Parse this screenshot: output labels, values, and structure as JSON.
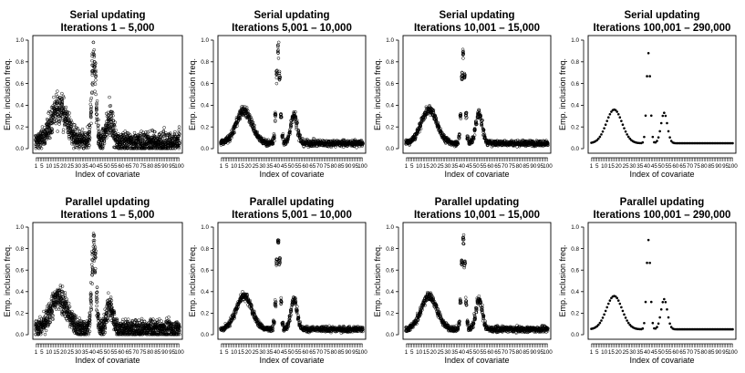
{
  "figure": {
    "xlabel": "Index of covariate",
    "ylabel": "Emp. inclusion freq.",
    "yticks": [
      0.0,
      0.2,
      0.4,
      0.6,
      0.8,
      1.0
    ],
    "ytick_labels": [
      "0.0",
      "0.2",
      "0.4",
      "0.6",
      "0.8",
      "1.0"
    ],
    "xticks": [
      1,
      5,
      10,
      15,
      20,
      25,
      30,
      35,
      40,
      45,
      50,
      55,
      60,
      65,
      70,
      75,
      80,
      85,
      90,
      95,
      100
    ],
    "xtick_labels": [
      "1",
      "5",
      "10",
      "15",
      "20",
      "25",
      "30",
      "35",
      "40",
      "45",
      "50",
      "55",
      "60",
      "65",
      "70",
      "75",
      "80",
      "85",
      "90",
      "95",
      "100"
    ],
    "xlim": [
      1,
      100
    ],
    "ylim": [
      0,
      1
    ],
    "colors": {
      "points": "#000000",
      "frame": "#000000",
      "background": "#ffffff"
    }
  },
  "chart_data": [
    {
      "type": "scatter",
      "scheme_title": "Serial updating",
      "range_title": "Iterations 1 – 5,000",
      "spread": 0.09,
      "points_per_covariate": 15,
      "peaks": [
        {
          "x": 17,
          "height": 0.32,
          "width": 5.5
        },
        {
          "x": 41,
          "height": 0.8,
          "width": 1.4
        },
        {
          "x": 52,
          "height": 0.22,
          "width": 2.2
        }
      ],
      "baseline": 0.06
    },
    {
      "type": "scatter",
      "scheme_title": "Serial updating",
      "range_title": "Iterations 5,001 – 10,000",
      "spread": 0.03,
      "points_per_covariate": 10,
      "peaks": [
        {
          "x": 17,
          "height": 0.3,
          "width": 5.5
        },
        {
          "x": 41,
          "height": 0.84,
          "width": 1.3
        },
        {
          "x": 52,
          "height": 0.27,
          "width": 2.2
        }
      ],
      "baseline": 0.05
    },
    {
      "type": "scatter",
      "scheme_title": "Serial updating",
      "range_title": "Iterations 10,001 – 15,000",
      "spread": 0.025,
      "points_per_covariate": 10,
      "peaks": [
        {
          "x": 17,
          "height": 0.31,
          "width": 5.5
        },
        {
          "x": 41,
          "height": 0.83,
          "width": 1.3
        },
        {
          "x": 52,
          "height": 0.28,
          "width": 2.2
        }
      ],
      "baseline": 0.05
    },
    {
      "type": "scatter",
      "scheme_title": "Serial updating",
      "range_title": "Iterations 100,001 – 290,000",
      "spread": 0.003,
      "points_per_covariate": 1,
      "peaks": [
        {
          "x": 17,
          "height": 0.31,
          "width": 5.5
        },
        {
          "x": 41,
          "height": 0.83,
          "width": 1.3
        },
        {
          "x": 52,
          "height": 0.28,
          "width": 2.2
        }
      ],
      "baseline": 0.05
    },
    {
      "type": "scatter",
      "scheme_title": "Parallel updating",
      "range_title": "Iterations 1 – 5,000",
      "spread": 0.085,
      "points_per_covariate": 15,
      "peaks": [
        {
          "x": 17,
          "height": 0.3,
          "width": 5.5
        },
        {
          "x": 41,
          "height": 0.82,
          "width": 1.4
        },
        {
          "x": 52,
          "height": 0.22,
          "width": 2.2
        }
      ],
      "baseline": 0.05
    },
    {
      "type": "scatter",
      "scheme_title": "Parallel updating",
      "range_title": "Iterations 5,001 – 10,000",
      "spread": 0.025,
      "points_per_covariate": 10,
      "peaks": [
        {
          "x": 17,
          "height": 0.31,
          "width": 5.5
        },
        {
          "x": 41,
          "height": 0.83,
          "width": 1.3
        },
        {
          "x": 52,
          "height": 0.28,
          "width": 2.2
        }
      ],
      "baseline": 0.05
    },
    {
      "type": "scatter",
      "scheme_title": "Parallel updating",
      "range_title": "Iterations 10,001 – 15,000",
      "spread": 0.025,
      "points_per_covariate": 10,
      "peaks": [
        {
          "x": 17,
          "height": 0.31,
          "width": 5.5
        },
        {
          "x": 41,
          "height": 0.83,
          "width": 1.3
        },
        {
          "x": 52,
          "height": 0.28,
          "width": 2.2
        }
      ],
      "baseline": 0.05
    },
    {
      "type": "scatter",
      "scheme_title": "Parallel updating",
      "range_title": "Iterations 100,001 – 290,000",
      "spread": 0.003,
      "points_per_covariate": 1,
      "peaks": [
        {
          "x": 17,
          "height": 0.31,
          "width": 5.5
        },
        {
          "x": 41,
          "height": 0.83,
          "width": 1.3
        },
        {
          "x": 52,
          "height": 0.28,
          "width": 2.2
        }
      ],
      "baseline": 0.05
    }
  ]
}
